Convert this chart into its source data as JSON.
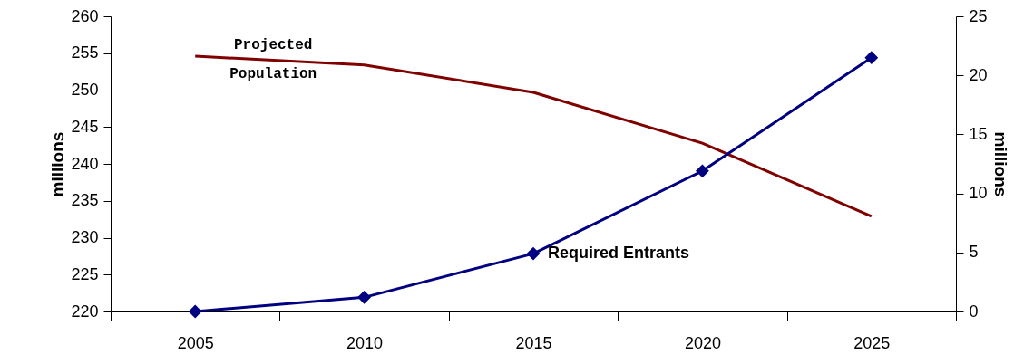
{
  "chart_data": {
    "type": "line",
    "categories": [
      "2005",
      "2010",
      "2015",
      "2020",
      "2025"
    ],
    "ylabel": "millions",
    "y2label": "millions",
    "ylim": [
      220,
      260
    ],
    "yticks": [
      220,
      225,
      230,
      235,
      240,
      245,
      250,
      255,
      260
    ],
    "y2lim": [
      0,
      25
    ],
    "y2ticks": [
      0,
      5,
      10,
      15,
      20,
      25
    ],
    "grid": false,
    "series": [
      {
        "name": "Projected Population",
        "color": "#800000",
        "marker": "none",
        "values": [
          254.6,
          253.4,
          249.7,
          242.8,
          232.9
        ]
      },
      {
        "name": "Required Entrants",
        "color": "#000080",
        "marker": "diamond",
        "axis": "y2",
        "values": [
          0,
          1.2,
          4.9,
          11.9,
          21.5
        ]
      }
    ]
  }
}
